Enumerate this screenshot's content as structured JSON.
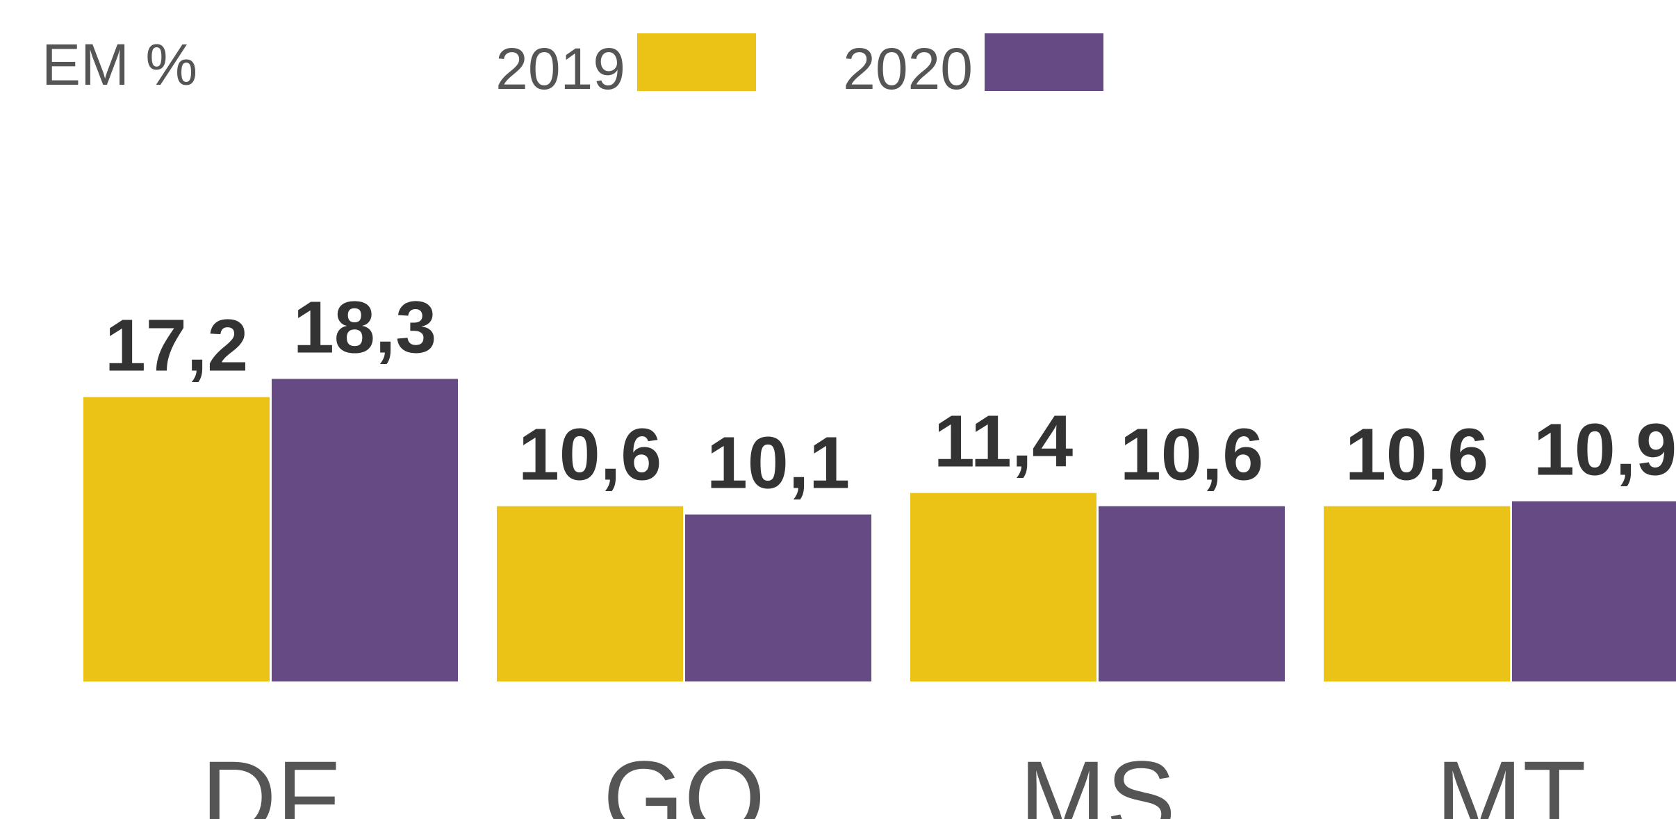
{
  "chart_data": {
    "type": "bar",
    "title": "EM %",
    "categories": [
      "DF",
      "GO",
      "MS",
      "MT"
    ],
    "series": [
      {
        "name": "2019",
        "color": "#ebc216",
        "values": [
          17.2,
          10.6,
          11.4,
          10.6
        ],
        "value_labels": [
          "17,2",
          "10,6",
          "11,4",
          "10,6"
        ]
      },
      {
        "name": "2020",
        "color": "#664a84",
        "values": [
          18.3,
          10.1,
          10.6,
          10.9
        ],
        "value_labels": [
          "18,3",
          "10,1",
          "10,6",
          "10,9"
        ]
      }
    ]
  }
}
